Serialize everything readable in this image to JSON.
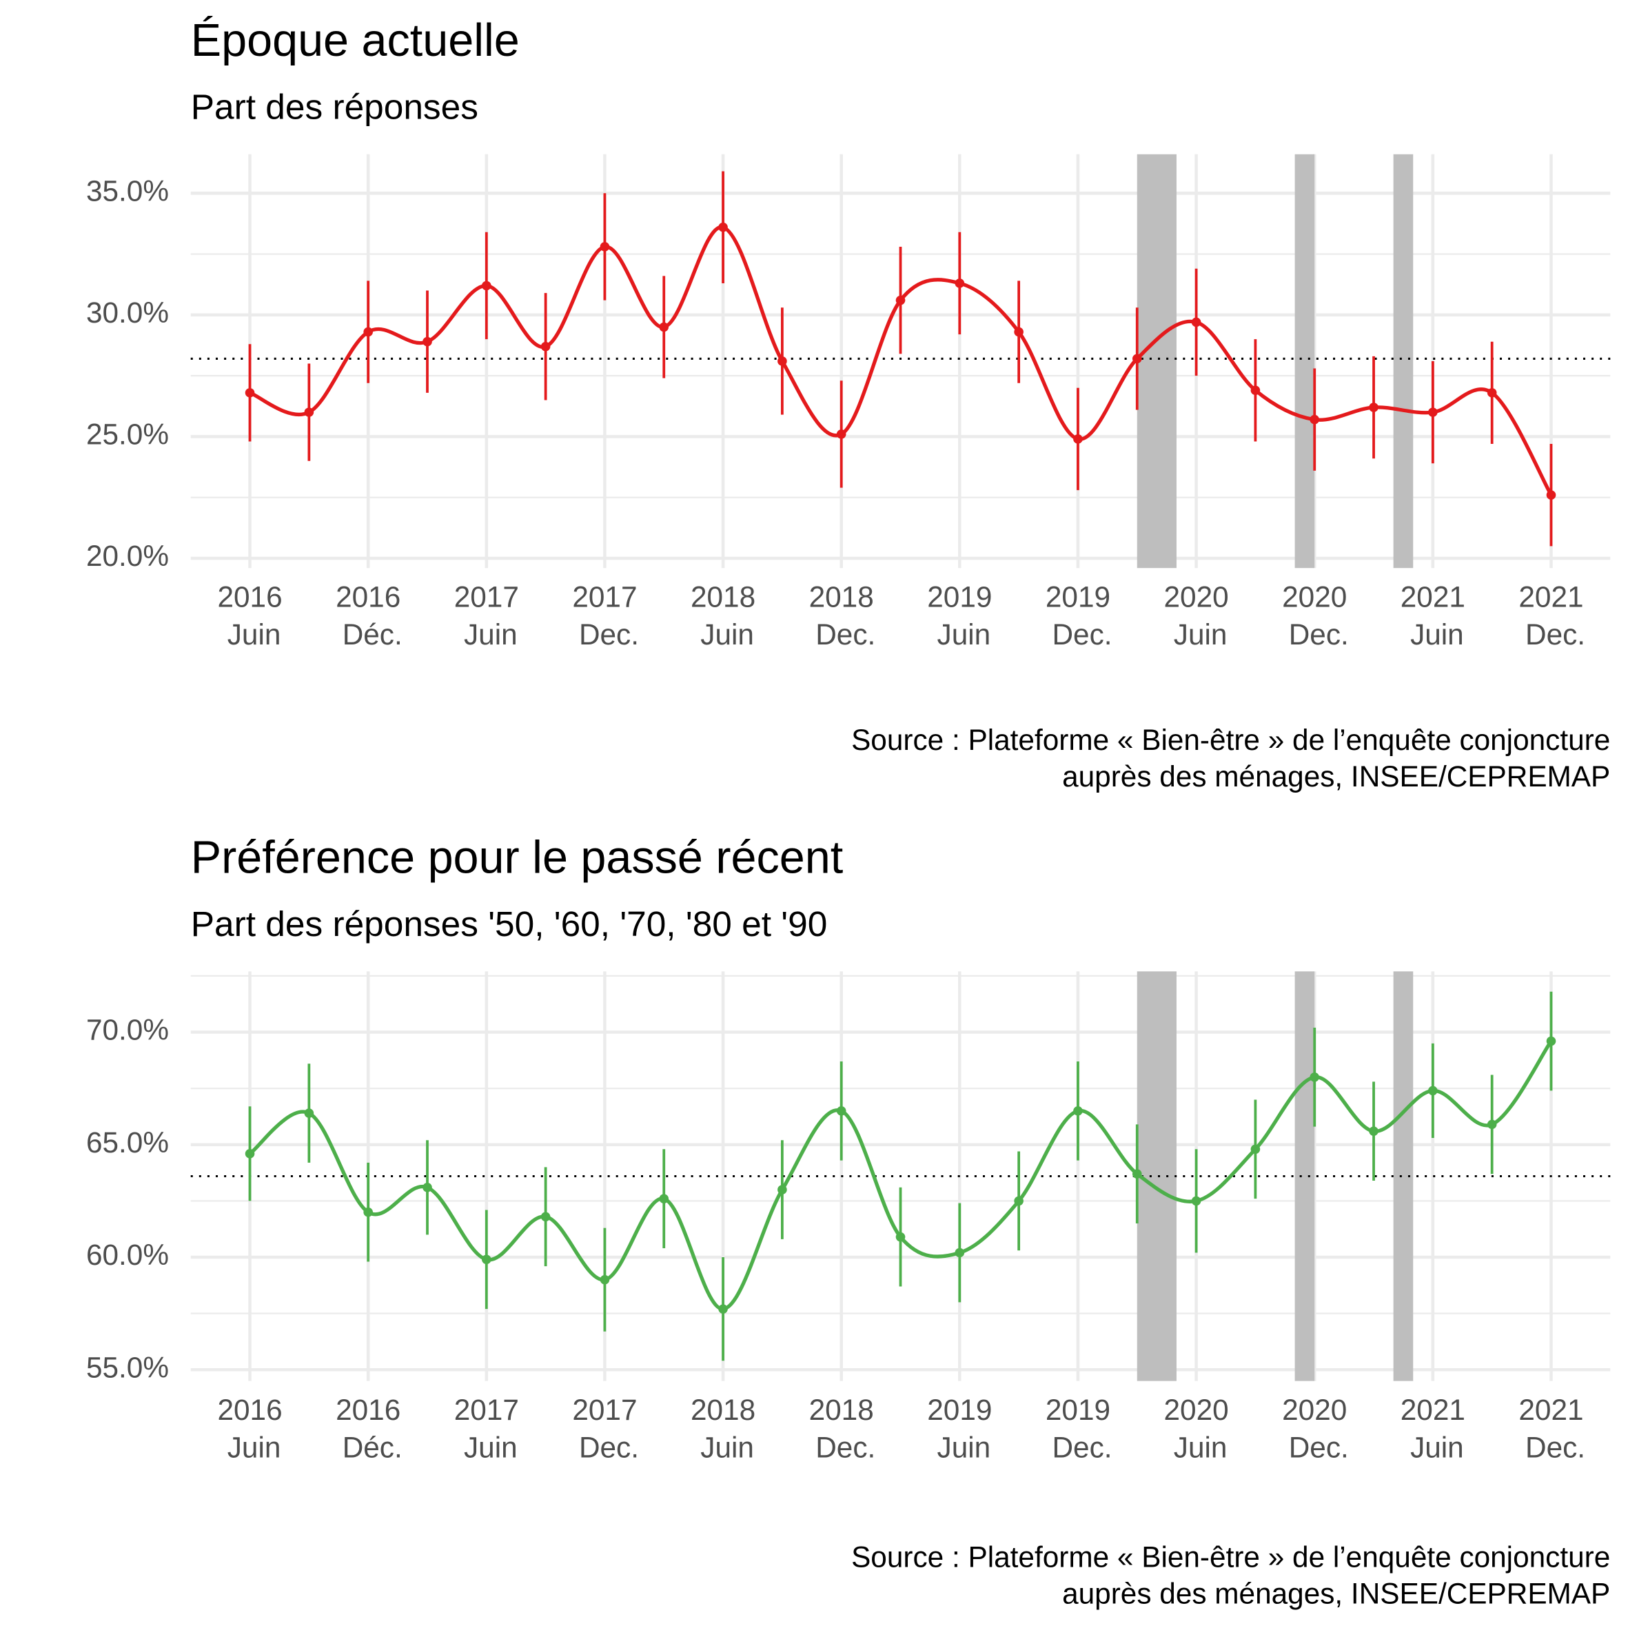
{
  "chart_data": [
    {
      "type": "line",
      "title": "Époque actuelle",
      "subtitle": "Part des réponses",
      "caption": [
        "Source : Plateforme « Bien-être » de l’enquête conjoncture",
        "auprès des ménages, INSEE/CEPREMAP"
      ],
      "x": [
        "2016-06",
        "2016-09",
        "2016-12",
        "2017-03",
        "2017-06",
        "2017-09",
        "2017-12",
        "2018-03",
        "2018-06",
        "2018-09",
        "2018-12",
        "2019-03",
        "2019-06",
        "2019-09",
        "2019-12",
        "2020-03",
        "2020-06",
        "2020-09",
        "2020-12",
        "2021-03",
        "2021-06",
        "2021-09",
        "2021-12"
      ],
      "series": [
        {
          "color": "#e41a1c",
          "values": [
            26.8,
            26.0,
            29.3,
            28.9,
            31.2,
            28.7,
            32.8,
            29.5,
            33.6,
            28.1,
            25.1,
            30.6,
            31.3,
            29.3,
            24.9,
            28.2,
            29.7,
            26.9,
            25.7,
            26.2,
            26.0,
            26.8,
            22.6
          ],
          "errors": [
            2.0,
            2.0,
            2.1,
            2.1,
            2.2,
            2.2,
            2.2,
            2.1,
            2.3,
            2.2,
            2.2,
            2.2,
            2.1,
            2.1,
            2.1,
            2.1,
            2.2,
            2.1,
            2.1,
            2.1,
            2.1,
            2.1,
            2.1
          ]
        }
      ],
      "reference_line": 28.2,
      "shaded_regions": [
        [
          "2020-03",
          "2020-05"
        ],
        [
          "2020-11",
          "2020-12"
        ],
        [
          "2021-04",
          "2021-05"
        ]
      ],
      "xlim": [
        "2016-03",
        "2022-03"
      ],
      "xticks": [
        {
          "value": "2016-06",
          "label": [
            "2016",
            "Juin"
          ]
        },
        {
          "value": "2016-12",
          "label": [
            "2016",
            "Déc."
          ]
        },
        {
          "value": "2017-06",
          "label": [
            "2017",
            "Juin"
          ]
        },
        {
          "value": "2017-12",
          "label": [
            "2017",
            "Dec."
          ]
        },
        {
          "value": "2018-06",
          "label": [
            "2018",
            "Juin"
          ]
        },
        {
          "value": "2018-12",
          "label": [
            "2018",
            "Dec."
          ]
        },
        {
          "value": "2019-06",
          "label": [
            "2019",
            "Juin"
          ]
        },
        {
          "value": "2019-12",
          "label": [
            "2019",
            "Dec."
          ]
        },
        {
          "value": "2020-06",
          "label": [
            "2020",
            "Juin"
          ]
        },
        {
          "value": "2020-12",
          "label": [
            "2020",
            "Dec."
          ]
        },
        {
          "value": "2021-06",
          "label": [
            "2021",
            "Juin"
          ]
        },
        {
          "value": "2021-12",
          "label": [
            "2021",
            "Dec."
          ]
        }
      ],
      "ylim": [
        19.6,
        36.6
      ],
      "yticks": [
        {
          "value": 20,
          "label": "20.0%"
        },
        {
          "value": 25,
          "label": "25.0%"
        },
        {
          "value": 30,
          "label": "30.0%"
        },
        {
          "value": 35,
          "label": "35.0%"
        }
      ],
      "minor_yticks": [
        22.5,
        27.5,
        32.5
      ],
      "grid": true
    },
    {
      "type": "line",
      "title": "Préférence pour le passé récent",
      "subtitle": "Part des réponses '50, '60, '70, '80 et '90",
      "caption": [
        "Source : Plateforme « Bien-être » de l’enquête conjoncture",
        "auprès des ménages, INSEE/CEPREMAP"
      ],
      "x": [
        "2016-06",
        "2016-09",
        "2016-12",
        "2017-03",
        "2017-06",
        "2017-09",
        "2017-12",
        "2018-03",
        "2018-06",
        "2018-09",
        "2018-12",
        "2019-03",
        "2019-06",
        "2019-09",
        "2019-12",
        "2020-03",
        "2020-06",
        "2020-09",
        "2020-12",
        "2021-03",
        "2021-06",
        "2021-09",
        "2021-12"
      ],
      "series": [
        {
          "color": "#4daf4a",
          "values": [
            64.6,
            66.4,
            62.0,
            63.1,
            59.9,
            61.8,
            59.0,
            62.6,
            57.7,
            63.0,
            66.5,
            60.9,
            60.2,
            62.5,
            66.5,
            63.7,
            62.5,
            64.8,
            68.0,
            65.6,
            67.4,
            65.9,
            69.6
          ],
          "errors": [
            2.1,
            2.2,
            2.2,
            2.1,
            2.2,
            2.2,
            2.3,
            2.2,
            2.3,
            2.2,
            2.2,
            2.2,
            2.2,
            2.2,
            2.2,
            2.2,
            2.3,
            2.2,
            2.2,
            2.2,
            2.1,
            2.2,
            2.2
          ]
        }
      ],
      "reference_line": 63.6,
      "shaded_regions": [
        [
          "2020-03",
          "2020-05"
        ],
        [
          "2020-11",
          "2020-12"
        ],
        [
          "2021-04",
          "2021-05"
        ]
      ],
      "xlim": [
        "2016-03",
        "2022-03"
      ],
      "xticks": [
        {
          "value": "2016-06",
          "label": [
            "2016",
            "Juin"
          ]
        },
        {
          "value": "2016-12",
          "label": [
            "2016",
            "Déc."
          ]
        },
        {
          "value": "2017-06",
          "label": [
            "2017",
            "Juin"
          ]
        },
        {
          "value": "2017-12",
          "label": [
            "2017",
            "Dec."
          ]
        },
        {
          "value": "2018-06",
          "label": [
            "2018",
            "Juin"
          ]
        },
        {
          "value": "2018-12",
          "label": [
            "2018",
            "Dec."
          ]
        },
        {
          "value": "2019-06",
          "label": [
            "2019",
            "Juin"
          ]
        },
        {
          "value": "2019-12",
          "label": [
            "2019",
            "Dec."
          ]
        },
        {
          "value": "2020-06",
          "label": [
            "2020",
            "Juin"
          ]
        },
        {
          "value": "2020-12",
          "label": [
            "2020",
            "Dec."
          ]
        },
        {
          "value": "2021-06",
          "label": [
            "2021",
            "Juin"
          ]
        },
        {
          "value": "2021-12",
          "label": [
            "2021",
            "Dec."
          ]
        }
      ],
      "ylim": [
        54.5,
        72.7
      ],
      "yticks": [
        {
          "value": 55,
          "label": "55.0%"
        },
        {
          "value": 60,
          "label": "60.0%"
        },
        {
          "value": 65,
          "label": "65.0%"
        },
        {
          "value": 70,
          "label": "70.0%"
        }
      ],
      "minor_yticks": [
        57.5,
        62.5,
        67.5,
        72.5
      ],
      "grid": true
    }
  ]
}
